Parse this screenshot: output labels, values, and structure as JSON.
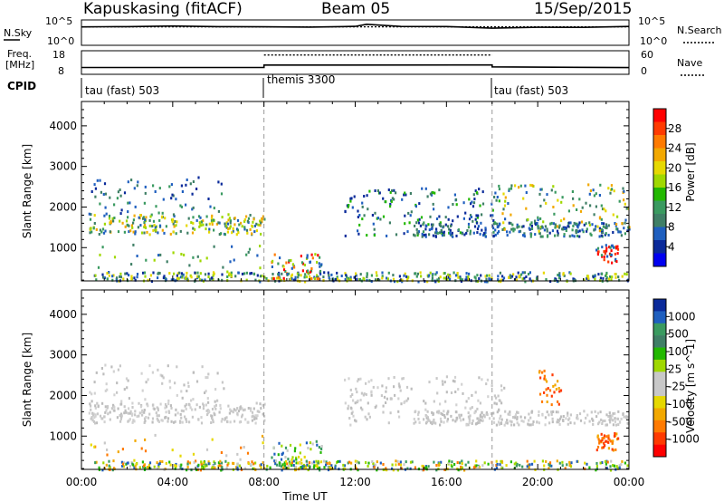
{
  "header": {
    "station": "Kapuskasing (fitACF)",
    "beam": "Beam 05",
    "date": "15/Sep/2015"
  },
  "side_labels": {
    "nsky": "N.Sky",
    "nsearch": "N.Search",
    "freq_line1": "Freq.",
    "freq_line2": "[MHz]",
    "nave": "Nave",
    "cpid": "CPID"
  },
  "chart_data": [
    {
      "type": "line",
      "name": "noise",
      "left_ticks": [
        "10^5",
        "10^0"
      ],
      "right_ticks": [
        "10^5",
        "10^0"
      ],
      "series": [
        {
          "name": "N.Sky",
          "style": "solid",
          "x": [
            "00:00",
            "01:00",
            "02:00",
            "04:00",
            "06:00",
            "08:00",
            "10:00",
            "12:00",
            "12:30",
            "14:00",
            "16:00",
            "18:00",
            "20:00",
            "22:00",
            "24:00"
          ],
          "level": [
            0.72,
            0.74,
            0.73,
            0.74,
            0.73,
            0.72,
            0.73,
            0.73,
            0.82,
            0.73,
            0.73,
            0.68,
            0.7,
            0.72,
            0.74
          ]
        },
        {
          "name": "N.Search",
          "style": "dotted",
          "x": [
            "00:00",
            "24:00"
          ],
          "level": [
            0.73,
            0.73
          ]
        }
      ]
    },
    {
      "type": "line",
      "name": "frequency_nave",
      "left_ticks": [
        "18",
        "8"
      ],
      "right_ticks": [
        "60",
        "0"
      ],
      "series": [
        {
          "name": "Freq.",
          "style": "solid",
          "x": [
            "00:00",
            "08:00",
            "08:00",
            "18:00",
            "18:00",
            "24:00"
          ],
          "level": [
            0.3,
            0.3,
            0.38,
            0.38,
            0.3,
            0.3
          ]
        },
        {
          "name": "Nave",
          "style": "dotted",
          "x": [
            "08:00",
            "18:00"
          ],
          "level": [
            0.82,
            0.82
          ]
        }
      ]
    },
    {
      "type": "table",
      "name": "cpid",
      "segments": [
        {
          "label": "tau (fast) 503",
          "start": "00:00",
          "end": "08:00"
        },
        {
          "label": "themis 3300",
          "start": "08:00",
          "end": "18:00"
        },
        {
          "label": "tau (fast) 503",
          "start": "18:00",
          "end": "24:00"
        }
      ]
    },
    {
      "type": "heatmap",
      "name": "power",
      "ylabel": "Slant Range [km]",
      "ylim": [
        180,
        4600
      ],
      "yticks": [
        1000,
        2000,
        3000,
        4000
      ],
      "colorbar_label": "Power [dB]",
      "colorbar_ticks": [
        "28",
        "24",
        "20",
        "16",
        "12",
        "8",
        "4"
      ],
      "colorbar_colors": [
        "#ff0000",
        "#ff3a00",
        "#ff7a00",
        "#f2a800",
        "#e6d800",
        "#9fd800",
        "#22b800",
        "#3a9a60",
        "#3f7f66",
        "#1f5fbf",
        "#0a2a9a",
        "#0000f0"
      ],
      "vlines": [
        "08:00",
        "18:00"
      ],
      "bands": [
        {
          "start": 0.3,
          "end": 8.0,
          "range": [
            1350,
            1850
          ],
          "count": 220,
          "colors": [
            "#1f5fbf",
            "#3a9a60",
            "#9fd800",
            "#e6d800",
            "#f2a800",
            "#3f7f66"
          ]
        },
        {
          "start": 0.3,
          "end": 6.5,
          "range": [
            1850,
            2800
          ],
          "count": 70,
          "colors": [
            "#1f5fbf",
            "#3f7f66",
            "#3a9a60",
            "#0a2a9a"
          ]
        },
        {
          "start": 0.3,
          "end": 8.0,
          "range": [
            400,
            1100
          ],
          "count": 35,
          "colors": [
            "#1f5fbf",
            "#3a9a60",
            "#9fd800",
            "#3f7f66"
          ]
        },
        {
          "start": 11.5,
          "end": 18.5,
          "range": [
            1300,
            2500
          ],
          "count": 160,
          "colors": [
            "#0a2a9a",
            "#1f5fbf",
            "#3f7f66",
            "#22b800"
          ]
        },
        {
          "start": 14.5,
          "end": 24.0,
          "range": [
            1300,
            1650
          ],
          "count": 230,
          "colors": [
            "#1f5fbf",
            "#3f7f66",
            "#3a9a60",
            "#0a2a9a"
          ]
        },
        {
          "start": 18.0,
          "end": 24.0,
          "range": [
            1400,
            2600
          ],
          "count": 120,
          "colors": [
            "#3a9a60",
            "#9fd800",
            "#e6d800",
            "#f2a800",
            "#1f5fbf",
            "#3f7f66"
          ]
        },
        {
          "start": 22.5,
          "end": 23.5,
          "range": [
            650,
            1100
          ],
          "count": 40,
          "colors": [
            "#ff3a00",
            "#ff0000",
            "#3a9a60",
            "#1f5fbf"
          ]
        },
        {
          "start": 0.5,
          "end": 24.0,
          "range": [
            190,
            420
          ],
          "count": 420,
          "colors": [
            "#0a2a9a",
            "#1f5fbf",
            "#3f7f66",
            "#3a9a60",
            "#9fd800",
            "#e6d800"
          ]
        },
        {
          "start": 8.3,
          "end": 10.5,
          "range": [
            250,
            900
          ],
          "count": 60,
          "colors": [
            "#ff0000",
            "#ff7a00",
            "#e6d800",
            "#9fd800",
            "#3a9a60",
            "#1f5fbf"
          ]
        }
      ]
    },
    {
      "type": "heatmap",
      "name": "velocity",
      "ylabel": "Slant Range [km]",
      "xlabel": "Time UT",
      "ylim": [
        180,
        4600
      ],
      "yticks": [
        1000,
        2000,
        3000,
        4000
      ],
      "xticks": [
        "00:00",
        "04:00",
        "08:00",
        "12:00",
        "16:00",
        "20:00",
        "00:00"
      ],
      "colorbar_label": "Velocity [m s^-1]",
      "colorbar_ticks": [
        "1000",
        "500",
        "100",
        "25",
        "-25",
        "-100",
        "-500",
        "-1000"
      ],
      "colorbar_colors": [
        "#0a2a9a",
        "#1f5fbf",
        "#3a9a60",
        "#3f7f66",
        "#22b800",
        "#9fd800",
        "#c8c8c8",
        "#c8c8c8",
        "#e6d800",
        "#f2a800",
        "#ff7a00",
        "#ff3a00",
        "#ff0000"
      ],
      "vlines": [
        "08:00",
        "18:00"
      ],
      "bands": [
        {
          "start": 0.3,
          "end": 8.0,
          "range": [
            1350,
            1850
          ],
          "count": 240,
          "colors": [
            "#c8c8c8",
            "#c8c8c8",
            "#bdbdbd",
            "#d2d2d2"
          ]
        },
        {
          "start": 0.3,
          "end": 6.5,
          "range": [
            1850,
            2800
          ],
          "count": 70,
          "colors": [
            "#c8c8c8",
            "#d2d2d2",
            "#bdbdbd"
          ]
        },
        {
          "start": 0.3,
          "end": 8.0,
          "range": [
            400,
            1100
          ],
          "count": 30,
          "colors": [
            "#c8c8c8",
            "#e6d800",
            "#f2a800",
            "#ff7a00"
          ]
        },
        {
          "start": 11.5,
          "end": 18.5,
          "range": [
            1300,
            2500
          ],
          "count": 160,
          "colors": [
            "#c8c8c8",
            "#d2d2d2",
            "#bdbdbd"
          ]
        },
        {
          "start": 14.5,
          "end": 24.0,
          "range": [
            1300,
            1650
          ],
          "count": 230,
          "colors": [
            "#c8c8c8",
            "#d2d2d2",
            "#bdbdbd"
          ]
        },
        {
          "start": 20.0,
          "end": 21.0,
          "range": [
            1800,
            2700
          ],
          "count": 30,
          "colors": [
            "#ff7a00",
            "#f2a800",
            "#ff3a00"
          ]
        },
        {
          "start": 22.5,
          "end": 23.5,
          "range": [
            650,
            1100
          ],
          "count": 40,
          "colors": [
            "#ff7a00",
            "#f2a800",
            "#ff3a00"
          ]
        },
        {
          "start": 0.5,
          "end": 24.0,
          "range": [
            190,
            420
          ],
          "count": 420,
          "colors": [
            "#c8c8c8",
            "#e6d800",
            "#9fd800",
            "#22b800",
            "#f2a800",
            "#3a9a60",
            "#1f5fbf",
            "#ff7a00"
          ]
        },
        {
          "start": 8.3,
          "end": 10.5,
          "range": [
            250,
            900
          ],
          "count": 60,
          "colors": [
            "#22b800",
            "#9fd800",
            "#e6d800",
            "#3a9a60",
            "#c8c8c8",
            "#1f5fbf"
          ]
        }
      ]
    }
  ]
}
